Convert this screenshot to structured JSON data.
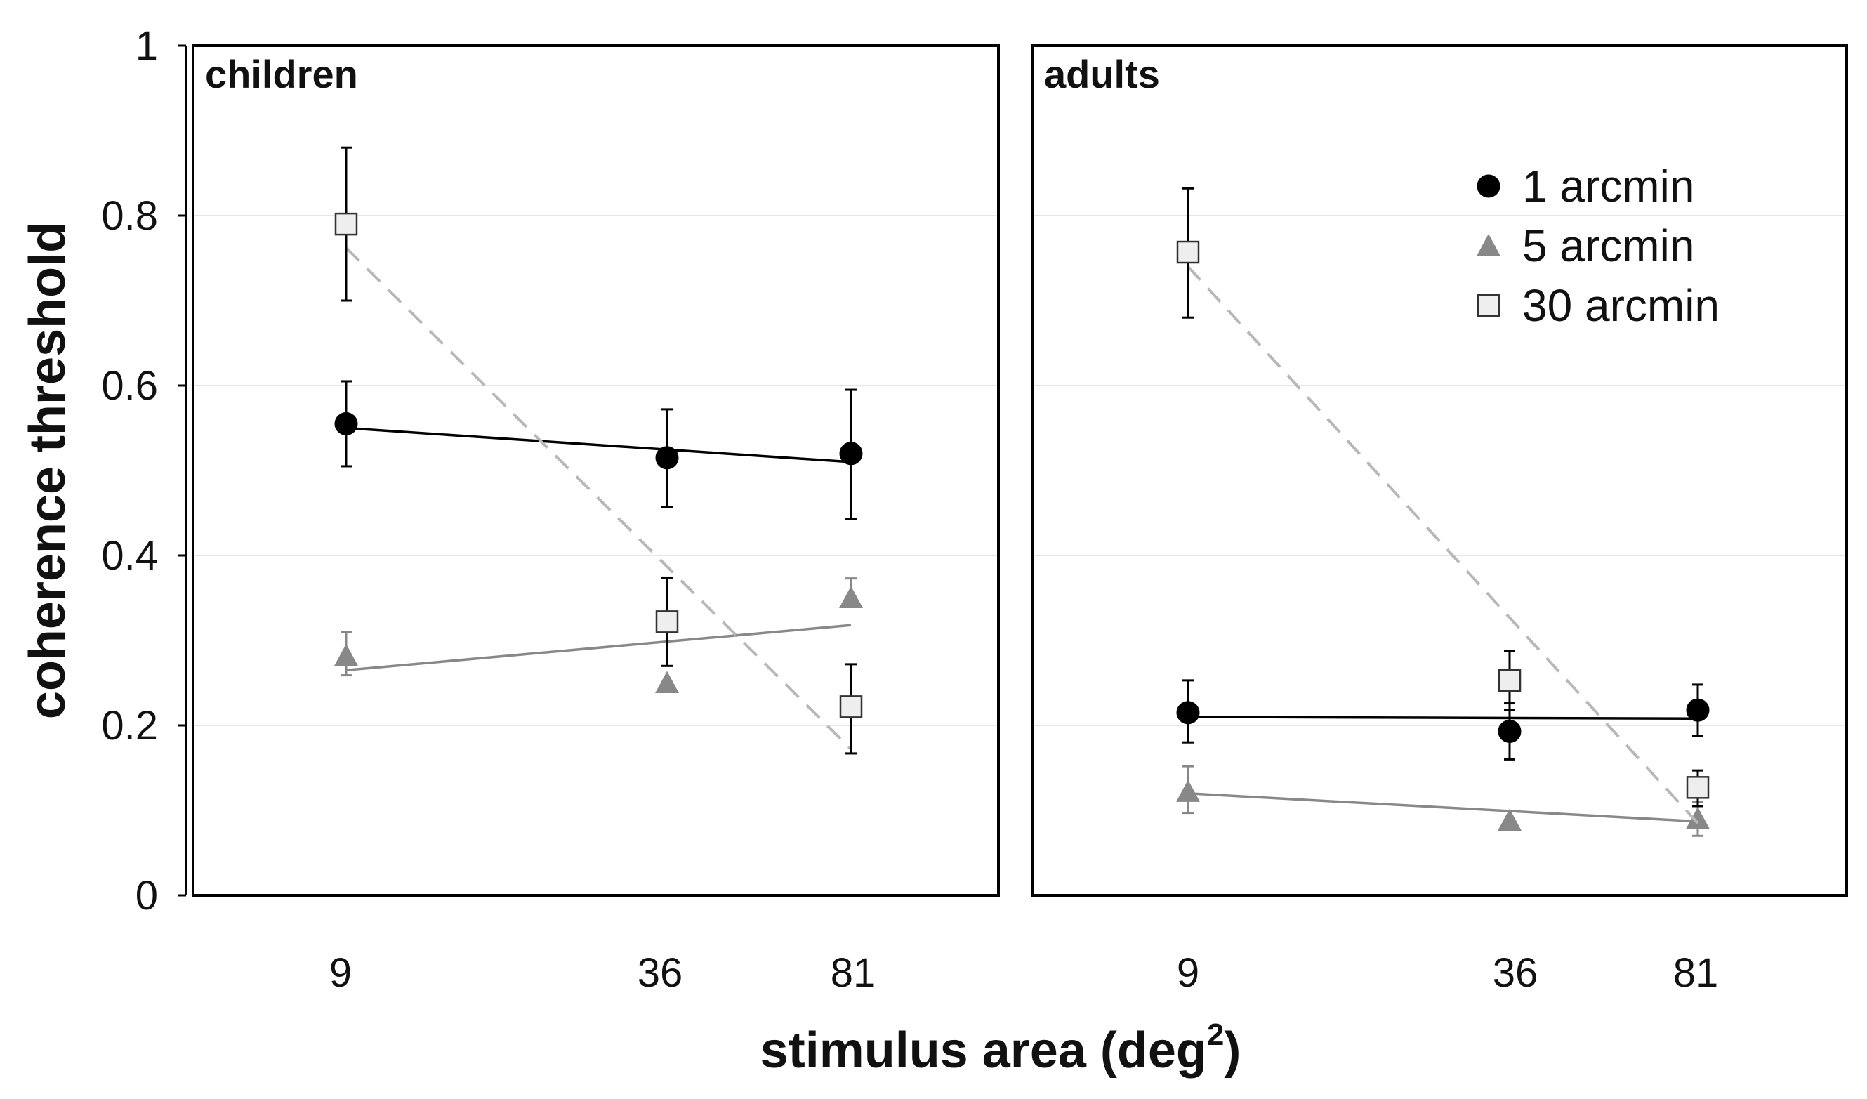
{
  "chart_data": {
    "type": "line",
    "ylabel": "coherence threshold",
    "xlabel": {
      "text": "stimulus area (deg",
      "superscript": "2",
      "suffix": ")"
    },
    "ylim": [
      0,
      1
    ],
    "yticks": [
      "0",
      "0.2",
      "0.4",
      "0.6",
      "0.8",
      "1"
    ],
    "ytick_values": [
      0,
      0.2,
      0.4,
      0.6,
      0.8,
      1
    ],
    "categories": [
      "9",
      "36",
      "81"
    ],
    "x": [
      9,
      36,
      81
    ],
    "grid": "horizontal",
    "legend_position": "top-right of adults panel",
    "colors": {
      "1 arcmin": "#000000",
      "5 arcmin": "#888888",
      "30 arcmin": "#eeeeee",
      "30 arcmin fit": "#b8b8b8",
      "axis": "#000000",
      "grid": "#e6e6e6"
    },
    "panels": [
      {
        "title": "children",
        "series": [
          {
            "name": "1 arcmin",
            "marker": "circle",
            "values": [
              0.555,
              0.515,
              0.52
            ],
            "err_low": [
              0.05,
              0.058,
              0.077
            ],
            "err_high": [
              0.05,
              0.057,
              0.075
            ],
            "fit": [
              0.55,
              0.51
            ]
          },
          {
            "name": "5 arcmin",
            "marker": "triangle",
            "values": [
              0.282,
              0.25,
              0.35
            ],
            "err_low": [
              0.023,
              0.0,
              0.0
            ],
            "err_high": [
              0.028,
              0.0,
              0.023
            ],
            "fit": [
              0.265,
              0.318
            ]
          },
          {
            "name": "30 arcmin",
            "marker": "square",
            "values": [
              0.79,
              0.322,
              0.222
            ],
            "err_low": [
              0.09,
              0.052,
              0.055
            ],
            "err_high": [
              0.09,
              0.052,
              0.05
            ],
            "fit": [
              0.762,
              0.172
            ]
          }
        ]
      },
      {
        "title": "adults",
        "series": [
          {
            "name": "1 arcmin",
            "marker": "circle",
            "values": [
              0.215,
              0.193,
              0.218
            ],
            "err_low": [
              0.035,
              0.033,
              0.03
            ],
            "err_high": [
              0.038,
              0.033,
              0.03
            ],
            "fit": [
              0.21,
              0.208
            ]
          },
          {
            "name": "5 arcmin",
            "marker": "triangle",
            "values": [
              0.122,
              0.088,
              0.09
            ],
            "err_low": [
              0.025,
              0.0,
              0.02
            ],
            "err_high": [
              0.03,
              0.0,
              0.02
            ],
            "fit": [
              0.12,
              0.087
            ]
          },
          {
            "name": "30 arcmin",
            "marker": "square",
            "values": [
              0.757,
              0.253,
              0.127
            ],
            "err_low": [
              0.077,
              0.035,
              0.022
            ],
            "err_high": [
              0.075,
              0.035,
              0.02
            ],
            "fit": [
              0.74,
              0.085
            ]
          }
        ]
      }
    ],
    "legend": [
      {
        "label": "1 arcmin",
        "marker": "circle"
      },
      {
        "label": "5 arcmin",
        "marker": "triangle"
      },
      {
        "label": "30 arcmin",
        "marker": "square"
      }
    ]
  }
}
